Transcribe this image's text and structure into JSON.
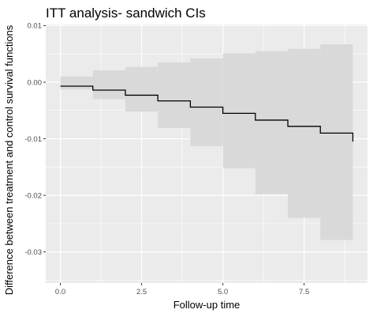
{
  "chart_data": {
    "type": "step",
    "title": "ITT analysis- sandwich CIs",
    "xlabel": "Follow-up time",
    "ylabel": "Difference between treatment and control survival functions",
    "xlim": [
      -0.45,
      9.45
    ],
    "ylim": [
      -0.0355,
      0.0102
    ],
    "x_ticks": [
      0.0,
      2.5,
      5.0,
      7.5
    ],
    "x_tick_labels": [
      "0.0",
      "2.5",
      "5.0",
      "7.5"
    ],
    "y_ticks": [
      0.01,
      0.0,
      -0.01,
      -0.02,
      -0.03
    ],
    "y_tick_labels": [
      "0.01",
      "0.00",
      "-0.01",
      "-0.02",
      "-0.03"
    ],
    "grid": true,
    "colors": {
      "panel": "#ebebeb",
      "grid": "#ffffff",
      "band": "#d9d9d9",
      "line": "#000000"
    },
    "series": [
      {
        "kind": "step-line",
        "x": [
          0,
          1,
          2,
          3,
          4,
          5,
          6,
          7,
          8,
          9
        ],
        "y": [
          -0.0007,
          -0.0014,
          -0.0023,
          -0.0033,
          -0.0044,
          -0.0055,
          -0.0067,
          -0.0078,
          -0.009,
          -0.0105
        ]
      },
      {
        "kind": "ci-band",
        "x": [
          0,
          1,
          2,
          3,
          4,
          5,
          6,
          7,
          8,
          9
        ],
        "lower": [
          -0.0013,
          -0.003,
          -0.0052,
          -0.0081,
          -0.0113,
          -0.0152,
          -0.0198,
          -0.024,
          -0.0279,
          -0.0279
        ],
        "upper": [
          0.001,
          0.0021,
          0.0027,
          0.0035,
          0.0042,
          0.0051,
          0.0055,
          0.0059,
          0.0067,
          0.0067
        ]
      }
    ]
  }
}
